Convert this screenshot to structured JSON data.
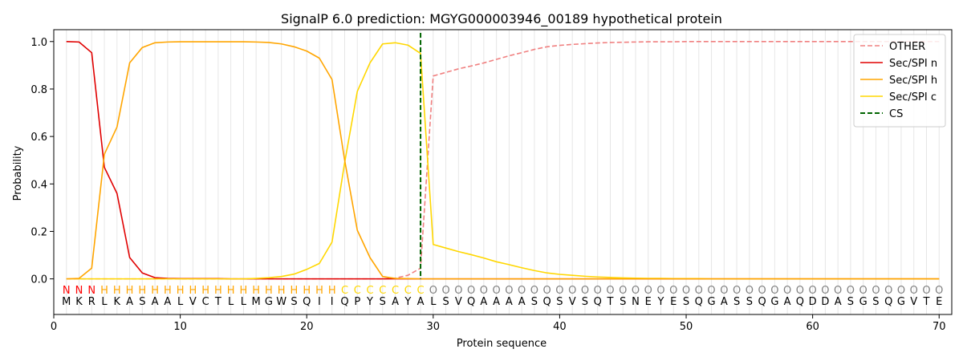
{
  "chart_data": {
    "type": "line",
    "title": "SignalP 6.0 prediction: MGYG000003946_00189 hypothetical protein",
    "xlabel": "Protein sequence",
    "ylabel": "Probability",
    "xlim": [
      0,
      71
    ],
    "ylim": [
      -0.15,
      1.05
    ],
    "xticks": [
      0,
      10,
      20,
      30,
      40,
      50,
      60,
      70
    ],
    "yticks": [
      0.0,
      0.2,
      0.4,
      0.6,
      0.8,
      1.0
    ],
    "ytick_labels": [
      "0.0",
      "0.2",
      "0.4",
      "0.6",
      "0.8",
      "1.0"
    ],
    "grid": "vertical lines at each residue",
    "legend_position": "top-right",
    "sequence": [
      "M",
      "K",
      "R",
      "L",
      "K",
      "A",
      "S",
      "A",
      "A",
      "L",
      "V",
      "C",
      "T",
      "L",
      "L",
      "M",
      "G",
      "W",
      "S",
      "Q",
      "I",
      "I",
      "Q",
      "P",
      "Y",
      "S",
      "A",
      "Y",
      "A",
      "L",
      "S",
      "V",
      "Q",
      "A",
      "A",
      "A",
      "A",
      "S",
      "Q",
      "S",
      "V",
      "S",
      "Q",
      "T",
      "S",
      "N",
      "E",
      "Y",
      "E",
      "S",
      "Q",
      "G",
      "A",
      "S",
      "S",
      "Q",
      "G",
      "A",
      "Q",
      "D",
      "D",
      "A",
      "S",
      "G",
      "S",
      "Q",
      "G",
      "V",
      "T",
      "E"
    ],
    "region_labels": [
      "N",
      "N",
      "N",
      "H",
      "H",
      "H",
      "H",
      "H",
      "H",
      "H",
      "H",
      "H",
      "H",
      "H",
      "H",
      "H",
      "H",
      "H",
      "H",
      "H",
      "H",
      "H",
      "C",
      "C",
      "C",
      "C",
      "C",
      "C",
      "C",
      "O",
      "O",
      "O",
      "O",
      "O",
      "O",
      "O",
      "O",
      "O",
      "O",
      "O",
      "O",
      "O",
      "O",
      "O",
      "O",
      "O",
      "O",
      "O",
      "O",
      "O",
      "O",
      "O",
      "O",
      "O",
      "O",
      "O",
      "O",
      "O",
      "O",
      "O",
      "O",
      "O",
      "O",
      "O",
      "O",
      "O",
      "O",
      "O",
      "O",
      "O"
    ],
    "region_colors": {
      "N": "#ff0000",
      "H": "#ffa500",
      "C": "#ffd700",
      "O": "#808080"
    },
    "cleavage_site": 29,
    "series": [
      {
        "name": "OTHER",
        "color": "#f08080",
        "style": "dashed",
        "values": [
          0.0,
          0.0,
          0.0,
          0.0,
          0.0,
          0.0,
          0.0,
          0.0,
          0.0,
          0.0,
          0.0,
          0.0,
          0.0,
          0.0,
          0.0,
          0.0,
          0.0,
          0.0,
          0.0,
          0.0,
          0.0,
          0.0,
          0.0,
          0.0,
          0.0,
          0.0,
          0.003,
          0.015,
          0.045,
          0.855,
          0.87,
          0.885,
          0.897,
          0.91,
          0.925,
          0.94,
          0.953,
          0.967,
          0.978,
          0.984,
          0.988,
          0.991,
          0.994,
          0.996,
          0.997,
          0.998,
          0.999,
          0.999,
          0.999,
          1.0,
          1.0,
          1.0,
          1.0,
          1.0,
          1.0,
          1.0,
          1.0,
          1.0,
          1.0,
          1.0,
          1.0,
          1.0,
          1.0,
          1.0,
          1.0,
          1.0,
          1.0,
          1.0,
          1.0,
          1.0
        ]
      },
      {
        "name": "Sec/SPI n",
        "color": "#e00000",
        "style": "solid",
        "values": [
          1.0,
          0.998,
          0.953,
          0.47,
          0.36,
          0.09,
          0.025,
          0.005,
          0.002,
          0.001,
          0.001,
          0.001,
          0.001,
          0.0,
          0.0,
          0.0,
          0.0,
          0.0,
          0.0,
          0.0,
          0.0,
          0.0,
          0.0,
          0.0,
          0.0,
          0.0,
          0.0,
          0.0,
          0.0,
          0.0,
          0.0,
          0.0,
          0.0,
          0.0,
          0.0,
          0.0,
          0.0,
          0.0,
          0.0,
          0.0,
          0.0,
          0.0,
          0.0,
          0.0,
          0.0,
          0.0,
          0.0,
          0.0,
          0.0,
          0.0,
          0.0,
          0.0,
          0.0,
          0.0,
          0.0,
          0.0,
          0.0,
          0.0,
          0.0,
          0.0,
          0.0,
          0.0,
          0.0,
          0.0,
          0.0,
          0.0,
          0.0,
          0.0,
          0.0,
          0.0
        ]
      },
      {
        "name": "Sec/SPI h",
        "color": "#ffa500",
        "style": "solid",
        "values": [
          0.0,
          0.002,
          0.045,
          0.525,
          0.64,
          0.91,
          0.975,
          0.995,
          0.998,
          0.999,
          0.999,
          0.999,
          0.999,
          0.999,
          0.999,
          0.998,
          0.996,
          0.99,
          0.978,
          0.96,
          0.93,
          0.84,
          0.5,
          0.205,
          0.09,
          0.01,
          0.002,
          0.001,
          0.0,
          0.0,
          0.0,
          0.0,
          0.0,
          0.0,
          0.0,
          0.0,
          0.0,
          0.0,
          0.0,
          0.0,
          0.0,
          0.0,
          0.0,
          0.0,
          0.0,
          0.0,
          0.0,
          0.0,
          0.0,
          0.0,
          0.0,
          0.0,
          0.0,
          0.0,
          0.0,
          0.0,
          0.0,
          0.0,
          0.0,
          0.0,
          0.0,
          0.0,
          0.0,
          0.0,
          0.0,
          0.0,
          0.0,
          0.0,
          0.0,
          0.0
        ]
      },
      {
        "name": "Sec/SPI c",
        "color": "#ffd700",
        "style": "solid",
        "values": [
          0.0,
          0.0,
          0.0,
          0.0,
          0.0,
          0.0,
          0.0,
          0.0,
          0.0,
          0.0,
          0.0,
          0.0,
          0.0,
          0.0,
          0.0,
          0.002,
          0.005,
          0.01,
          0.02,
          0.04,
          0.065,
          0.155,
          0.49,
          0.79,
          0.91,
          0.99,
          0.995,
          0.985,
          0.95,
          0.145,
          0.13,
          0.115,
          0.102,
          0.088,
          0.072,
          0.06,
          0.047,
          0.035,
          0.025,
          0.019,
          0.015,
          0.011,
          0.008,
          0.006,
          0.004,
          0.003,
          0.002,
          0.002,
          0.001,
          0.001,
          0.001,
          0.0,
          0.0,
          0.0,
          0.0,
          0.0,
          0.0,
          0.0,
          0.0,
          0.0,
          0.0,
          0.0,
          0.0,
          0.0,
          0.0,
          0.0,
          0.0,
          0.0,
          0.0,
          0.0
        ]
      },
      {
        "name": "CS",
        "color": "#006400",
        "style": "dashed",
        "values": []
      }
    ]
  }
}
